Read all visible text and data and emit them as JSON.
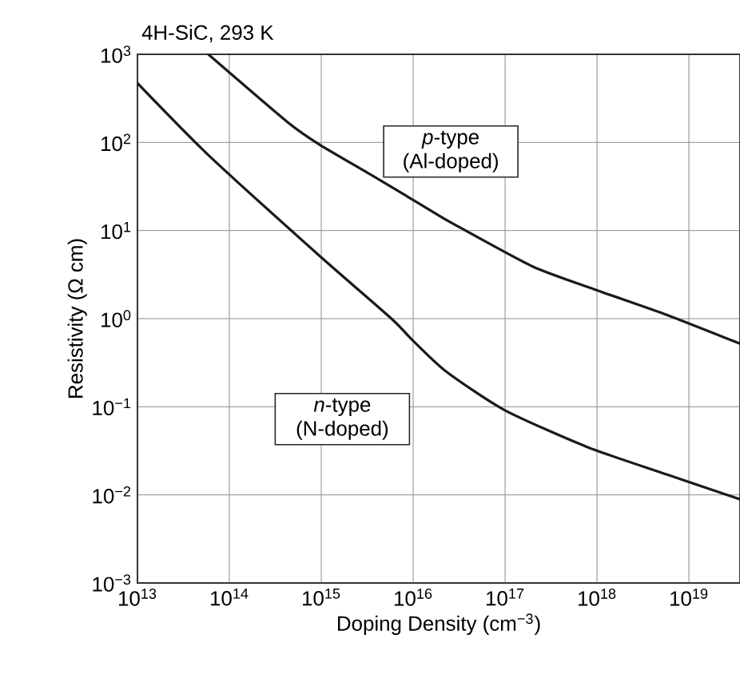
{
  "chart_data": {
    "type": "line",
    "title": "4H-SiC, 293 K",
    "xlabel": "Doping Density (cm$^{−3}$)",
    "ylabel": "Resistivity (Ω cm)",
    "log": "xy",
    "grid": true,
    "legend": false,
    "marker": "none",
    "line_style": "solid",
    "xlim": [
      10000000000000.0,
      3.6e+19
    ],
    "ylim": [
      0.001,
      1000
    ],
    "xticks": [
      {
        "value": 10000000000000.0,
        "label": "10$^{13}$"
      },
      {
        "value": 100000000000000.0,
        "label": "10$^{14}$"
      },
      {
        "value": 1000000000000000.0,
        "label": "10$^{15}$"
      },
      {
        "value": 1e+16,
        "label": "10$^{16}$"
      },
      {
        "value": 1e+17,
        "label": "10$^{17}$"
      },
      {
        "value": 1e+18,
        "label": "10$^{18}$"
      },
      {
        "value": 1e+19,
        "label": "10$^{19}$"
      }
    ],
    "yticks": [
      {
        "value": 0.001,
        "label": "10$^{−3}$"
      },
      {
        "value": 0.01,
        "label": "10$^{−2}$"
      },
      {
        "value": 0.1,
        "label": "10$^{−1}$"
      },
      {
        "value": 1,
        "label": "10$^{0}$"
      },
      {
        "value": 10,
        "label": "10$^{1}$"
      },
      {
        "value": 100,
        "label": "10$^{2}$"
      },
      {
        "value": 1000,
        "label": "10$^{3}$"
      }
    ],
    "series": [
      {
        "name": "*p*-type (Al-doped)",
        "color": "#1a1a1a",
        "x": [
          59000000000000.0,
          430000000000000.0,
          950000000000000.0,
          3600000000000000.0,
          1.4e+16,
          2.7e+16,
          2e+17,
          1e+18,
          5.8e+18,
          3.6e+19
        ],
        "values": [
          1000,
          170,
          95,
          42,
          18,
          12,
          3.9,
          2.1,
          1.1,
          0.52
        ]
      },
      {
        "name": "*n*-type (N-doped)",
        "color": "#1a1a1a",
        "x": [
          10000000000000.0,
          59000000000000.0,
          950000000000000.0,
          5800000000000000.0,
          1e+16,
          2.3e+16,
          1e+17,
          7.8e+17,
          5.8e+18,
          3.6e+19
        ],
        "values": [
          470,
          72,
          5.2,
          1.0,
          0.56,
          0.25,
          0.091,
          0.035,
          0.017,
          0.0089
        ]
      }
    ]
  }
}
